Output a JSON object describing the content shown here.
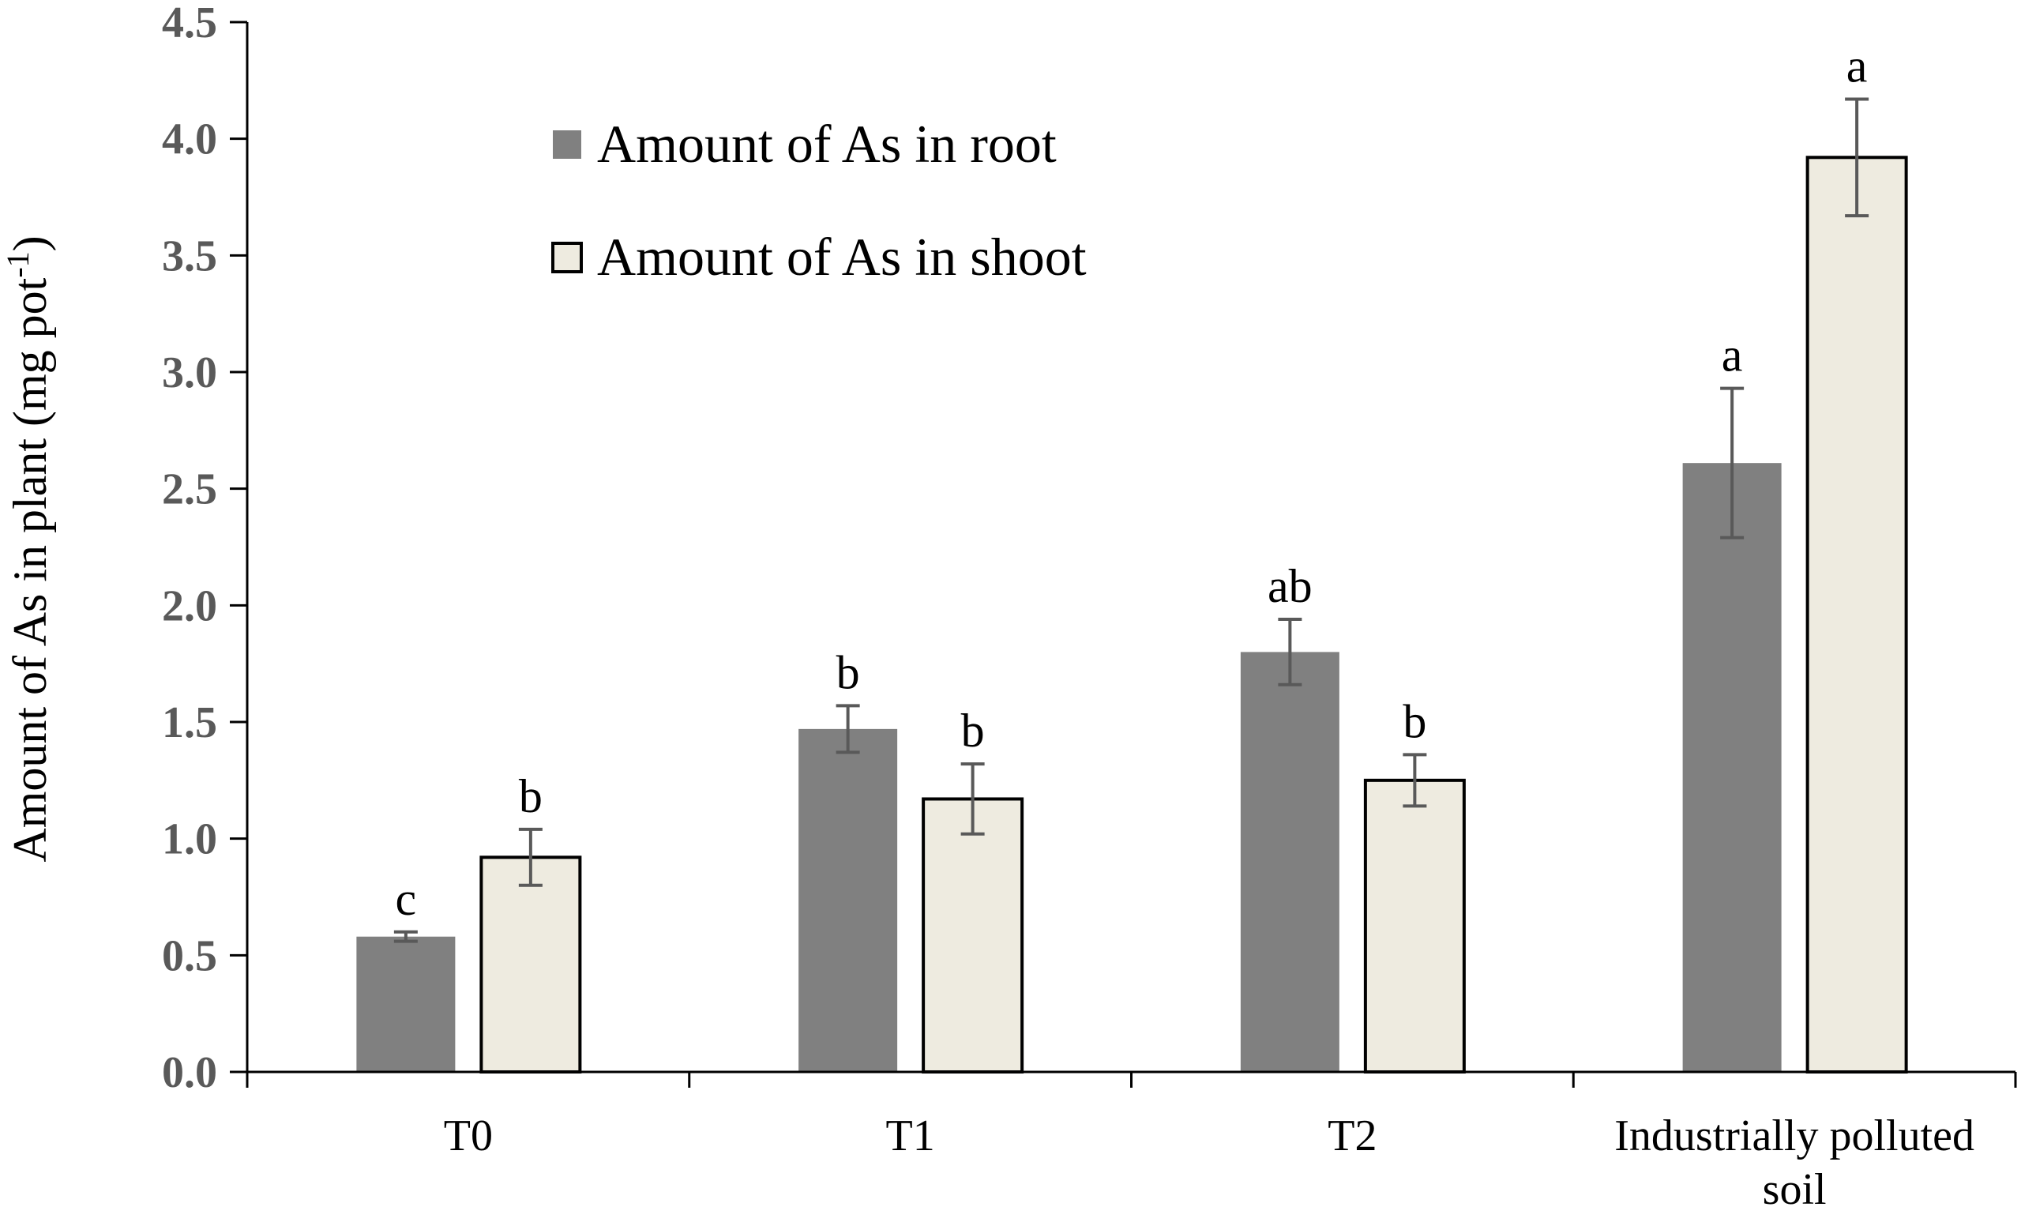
{
  "chart_data": {
    "type": "bar",
    "ylabel": "Amount of As in plant (mg pot",
    "ylabel_sup": "-1",
    "ylabel_end": ")",
    "ylim": [
      0,
      4.5
    ],
    "y_ticks": [
      "0.0",
      "0.5",
      "1.0",
      "1.5",
      "2.0",
      "2.5",
      "3.0",
      "3.5",
      "4.0",
      "4.5"
    ],
    "categories": [
      [
        "T0"
      ],
      [
        "T1"
      ],
      [
        "T2"
      ],
      [
        "Industrially polluted",
        "soil"
      ]
    ],
    "legend_position": "top-left",
    "series": [
      {
        "name": "Amount of As in root",
        "color": "#808080",
        "values": [
          0.58,
          1.47,
          1.8,
          2.61
        ],
        "errors": [
          0.02,
          0.1,
          0.14,
          0.32
        ],
        "labels": [
          "c",
          "b",
          "ab",
          "a"
        ]
      },
      {
        "name": "Amount of As in shoot",
        "color": "#eeebe0",
        "values": [
          0.92,
          1.17,
          1.25,
          3.92
        ],
        "errors": [
          0.12,
          0.15,
          0.11,
          0.25
        ],
        "labels": [
          "b",
          "b",
          "b",
          "a"
        ]
      }
    ]
  }
}
